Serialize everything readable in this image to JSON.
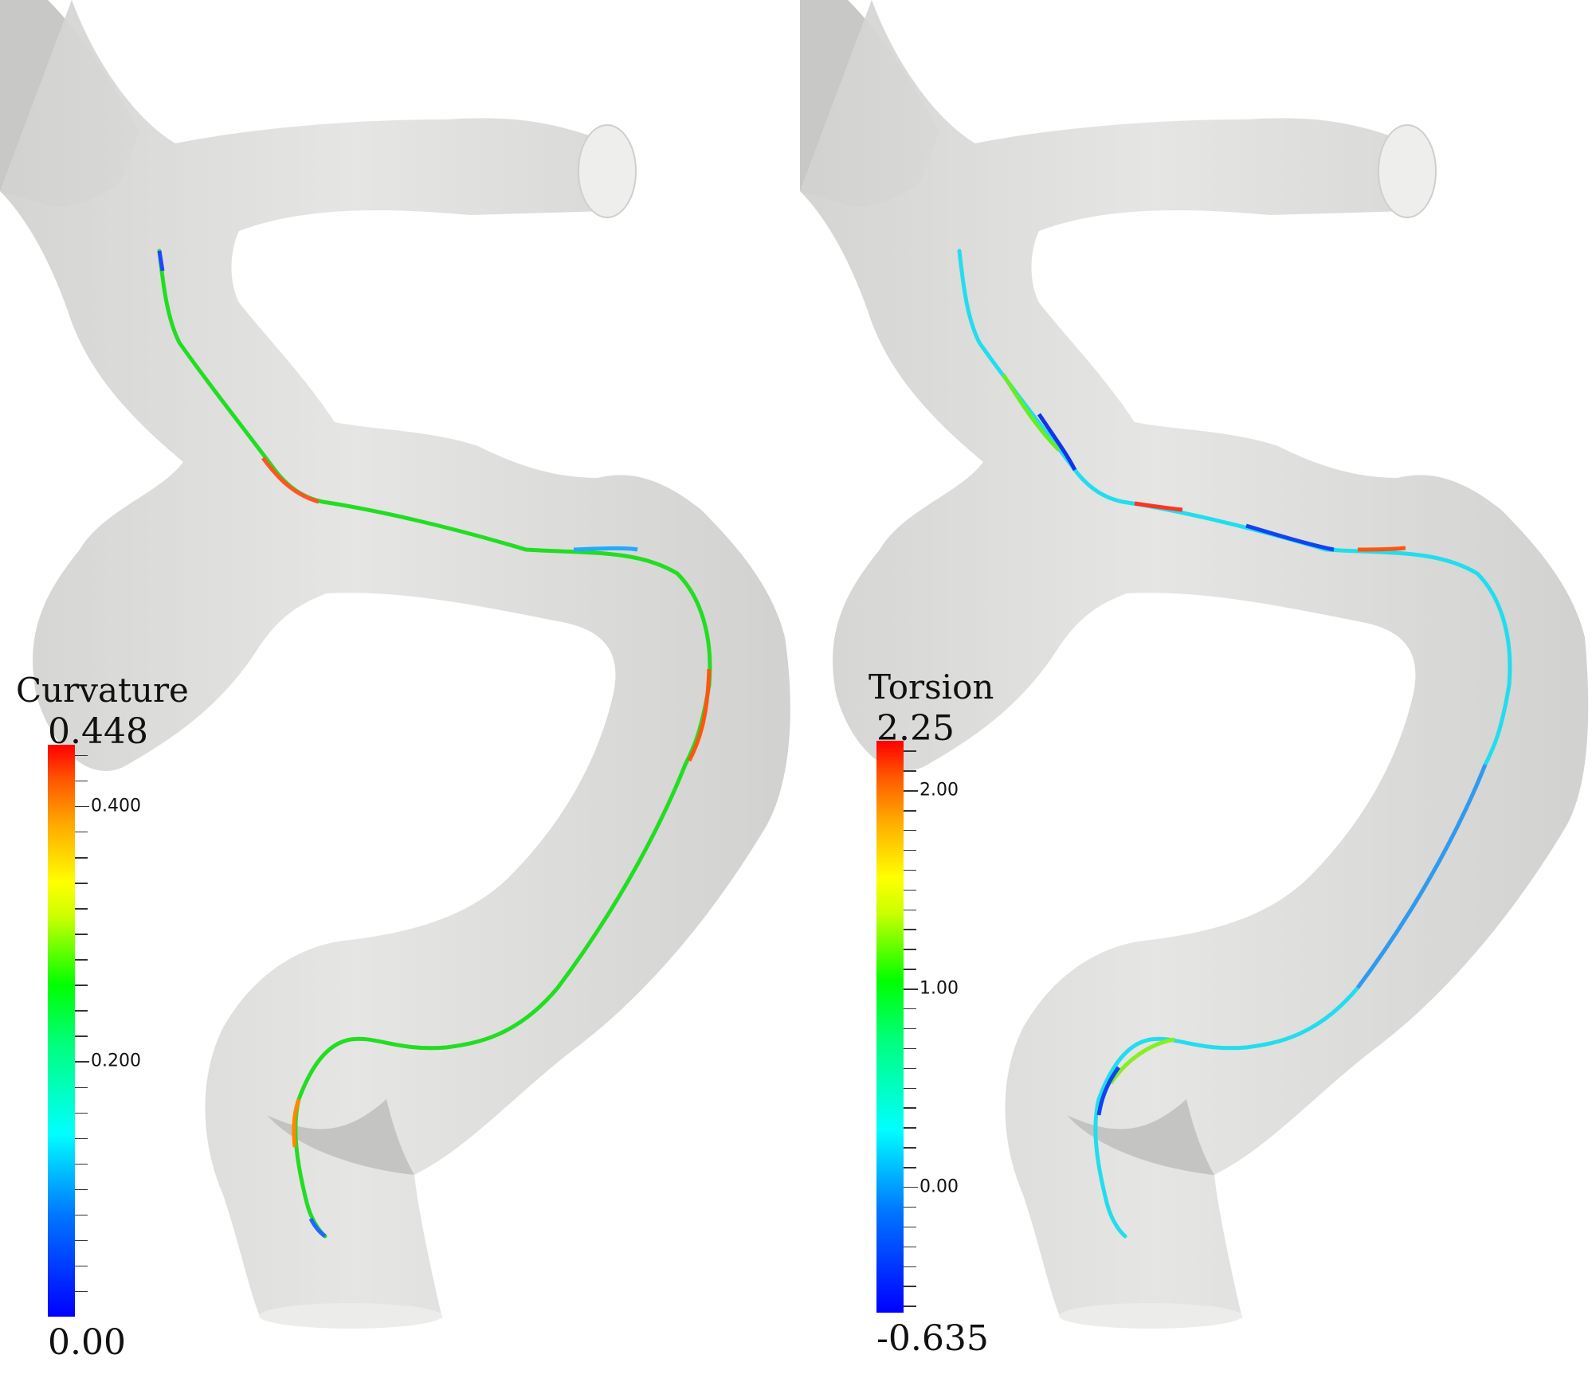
{
  "panels": [
    {
      "title": "Curvature",
      "max_label": "0.448",
      "min_label": "0.00",
      "range": [
        0.0,
        0.448
      ],
      "tick_labels": [
        {
          "value": 0.4,
          "text": "0.400"
        },
        {
          "value": 0.2,
          "text": "0.200"
        }
      ],
      "minor_tick_step": 0.02
    },
    {
      "title": "Torsion",
      "max_label": "2.25",
      "min_label": "-0.635",
      "range": [
        -0.635,
        2.25
      ],
      "tick_labels": [
        {
          "value": 2.0,
          "text": "2.00"
        },
        {
          "value": 1.0,
          "text": "1.00"
        },
        {
          "value": 0.0,
          "text": "0.00"
        }
      ],
      "minor_tick_step": 0.1
    }
  ],
  "colors": {
    "vessel_fill": "#dcdcda",
    "vessel_shade": "#c9c9c7",
    "background": "#ffffff"
  },
  "icons": [
    "colormap-legend",
    "vessel-surface",
    "centerline"
  ]
}
